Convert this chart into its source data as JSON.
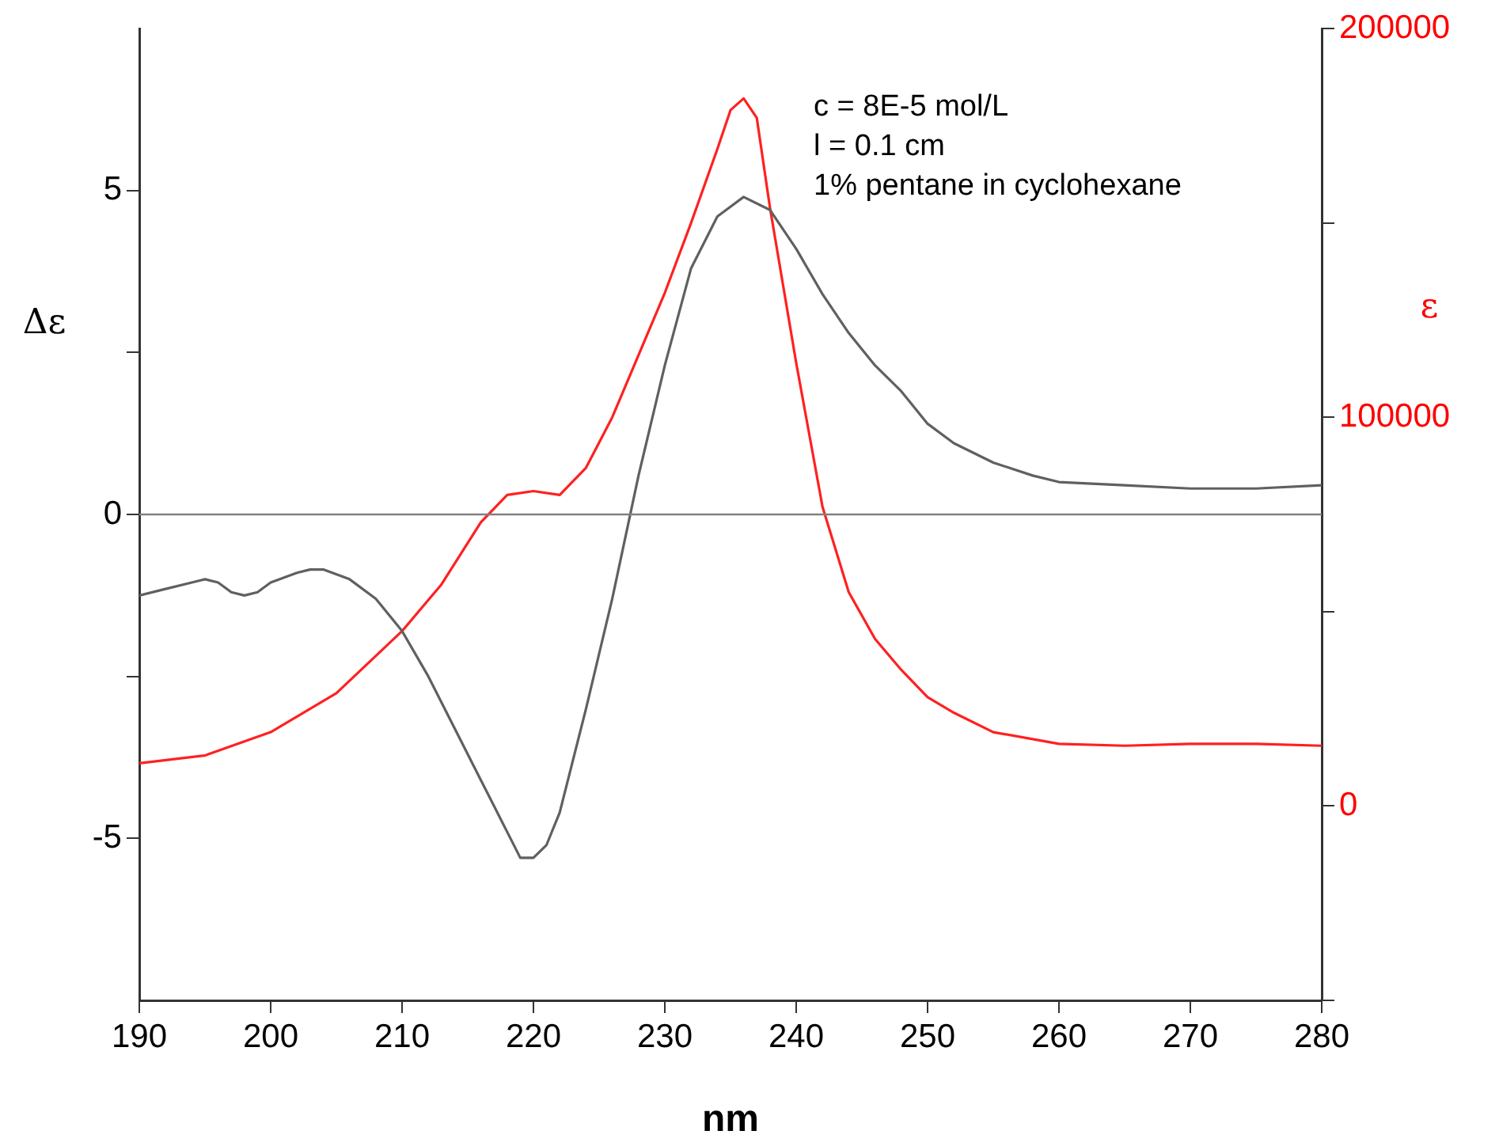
{
  "chart_data": {
    "type": "line",
    "xlabel": "nm",
    "ylabel": "Δε",
    "y2label": "ε",
    "annotations": [
      "c = 8E-5 mol/L",
      "l = 0.1 cm",
      "1% pentane in cyclohexane"
    ],
    "xlim": [
      190,
      280
    ],
    "xticks": [
      190,
      200,
      210,
      220,
      230,
      240,
      250,
      260,
      270,
      280
    ],
    "ylim": [
      -7.5,
      7.5
    ],
    "yticks": [
      -5,
      {
        "value": -2.5,
        "label": null
      },
      0,
      {
        "value": 2.5,
        "label": null
      },
      5
    ],
    "y2lim": [
      -50000,
      200000
    ],
    "y2ticks": [
      {
        "value": -50000,
        "label": null
      },
      0,
      {
        "value": 50000,
        "label": null
      },
      100000,
      {
        "value": 150000,
        "label": null
      },
      200000
    ],
    "grid": false,
    "legend": false,
    "marker": "none",
    "line_style": "solid",
    "ref_lines": [
      {
        "axis": "y",
        "value": 0,
        "color": "#808080"
      }
    ],
    "series": [
      {
        "color": "#606060",
        "x": [
          190,
          192,
          194,
          195,
          196,
          197,
          198,
          199,
          200,
          202,
          203,
          204,
          206,
          208,
          210,
          212,
          214,
          216,
          218,
          219,
          220,
          221,
          222,
          224,
          226,
          228,
          230,
          232,
          234,
          236,
          238,
          240,
          242,
          244,
          246,
          248,
          250,
          252,
          255,
          258,
          260,
          265,
          270,
          275,
          280
        ],
        "values": [
          -1.25,
          -1.15,
          -1.05,
          -1.0,
          -1.05,
          -1.2,
          -1.25,
          -1.2,
          -1.05,
          -0.9,
          -0.85,
          -0.85,
          -1.0,
          -1.3,
          -1.8,
          -2.5,
          -3.3,
          -4.1,
          -4.9,
          -5.3,
          -5.3,
          -5.1,
          -4.6,
          -3.0,
          -1.3,
          0.6,
          2.3,
          3.8,
          4.6,
          4.9,
          4.7,
          4.1,
          3.4,
          2.8,
          2.3,
          1.9,
          1.4,
          1.1,
          0.8,
          0.6,
          0.5,
          0.45,
          0.4,
          0.4,
          0.45
        ]
      },
      {
        "color": "#ff2020",
        "axis": "y2",
        "x": [
          190,
          195,
          200,
          205,
          210,
          213,
          216,
          218,
          220,
          222,
          224,
          226,
          228,
          230,
          232,
          234,
          235,
          236,
          237,
          238,
          240,
          242,
          244,
          246,
          248,
          250,
          252,
          255,
          260,
          265,
          270,
          275,
          280
        ],
        "values": [
          11000,
          13000,
          19000,
          29000,
          45000,
          57000,
          73000,
          80000,
          81000,
          80000,
          87000,
          100000,
          116000,
          132000,
          150000,
          169000,
          179000,
          182000,
          177000,
          154000,
          114000,
          77000,
          55000,
          43000,
          35000,
          28000,
          24000,
          19000,
          16000,
          15500,
          16000,
          16000,
          15500
        ]
      }
    ]
  }
}
